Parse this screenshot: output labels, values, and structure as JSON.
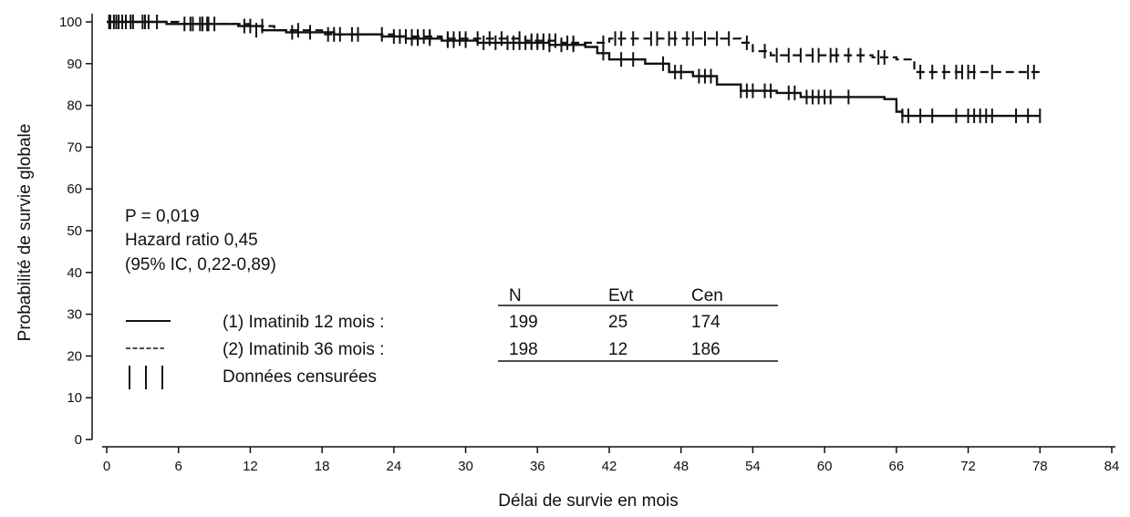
{
  "chart_data": {
    "type": "line",
    "subtype": "kaplan-meier",
    "xlabel": "Délai de survie en mois",
    "ylabel": "Probabilité de survie globale",
    "xlim": [
      0,
      84
    ],
    "ylim": [
      0,
      100
    ],
    "xticks": [
      "0",
      "6",
      "12",
      "18",
      "24",
      "30",
      "36",
      "42",
      "48",
      "54",
      "60",
      "66",
      "72",
      "78",
      "84"
    ],
    "yticks": [
      "0",
      "10",
      "20",
      "30",
      "40",
      "50",
      "60",
      "70",
      "80",
      "90",
      "100"
    ],
    "grid": false,
    "annotations": [
      "P = 0,019",
      "Hazard ratio 0,45",
      "(95% IC, 0,22-0,89)"
    ],
    "legend": {
      "position": "bottom-left",
      "entries": [
        {
          "symbol": "solid",
          "label": "(1) Imatinib 12 mois :"
        },
        {
          "symbol": "dashed",
          "label": "(2) Imatinib 36 mois :"
        },
        {
          "symbol": "ticks",
          "label": "Données censurées"
        }
      ]
    },
    "table": {
      "headers": [
        "N",
        "Evt",
        "Cen"
      ],
      "rows": [
        [
          "199",
          "25",
          "174"
        ],
        [
          "198",
          "12",
          "186"
        ]
      ]
    },
    "series": [
      {
        "style": "solid",
        "steps": [
          [
            0,
            100
          ],
          [
            5,
            99.5
          ],
          [
            11,
            99
          ],
          [
            13,
            98
          ],
          [
            15,
            97.5
          ],
          [
            19,
            97
          ],
          [
            23,
            96.5
          ],
          [
            25,
            96
          ],
          [
            28,
            95.5
          ],
          [
            31,
            95
          ],
          [
            37,
            94.5
          ],
          [
            40,
            94
          ],
          [
            41,
            92.5
          ],
          [
            42,
            91
          ],
          [
            45,
            90
          ],
          [
            47,
            88
          ],
          [
            49,
            87
          ],
          [
            51,
            85
          ],
          [
            53,
            83.5
          ],
          [
            56,
            83
          ],
          [
            58,
            82
          ],
          [
            65,
            81.5
          ],
          [
            66,
            78.5
          ],
          [
            66.5,
            77.5
          ],
          [
            78,
            77.5
          ]
        ],
        "censored": [
          [
            0.3,
            100
          ],
          [
            0.8,
            100
          ],
          [
            1.3,
            100
          ],
          [
            2,
            100
          ],
          [
            3,
            100
          ],
          [
            3.5,
            100
          ],
          [
            7,
            99.5
          ],
          [
            8,
            99.5
          ],
          [
            8.5,
            99.5
          ],
          [
            9,
            99.5
          ],
          [
            11.5,
            99
          ],
          [
            12,
            99
          ],
          [
            12.5,
            98
          ],
          [
            15.5,
            97.5
          ],
          [
            17,
            97.5
          ],
          [
            18.5,
            97
          ],
          [
            19.5,
            97
          ],
          [
            21,
            97
          ],
          [
            24,
            96.5
          ],
          [
            25.5,
            96
          ],
          [
            26,
            96
          ],
          [
            27,
            96
          ],
          [
            28.5,
            95.5
          ],
          [
            29,
            95.5
          ],
          [
            30,
            95.5
          ],
          [
            31.5,
            95
          ],
          [
            32.5,
            95
          ],
          [
            33.5,
            95
          ],
          [
            34,
            95
          ],
          [
            34.5,
            95
          ],
          [
            35,
            95
          ],
          [
            35.5,
            95
          ],
          [
            36,
            95
          ],
          [
            36.5,
            95
          ],
          [
            37,
            94.5
          ],
          [
            38,
            94.5
          ],
          [
            39,
            94.5
          ],
          [
            41.5,
            92.5
          ],
          [
            43,
            91
          ],
          [
            44,
            91
          ],
          [
            46.5,
            90
          ],
          [
            47.5,
            88
          ],
          [
            48,
            88
          ],
          [
            49.5,
            87
          ],
          [
            50,
            87
          ],
          [
            50.5,
            87
          ],
          [
            53,
            83.5
          ],
          [
            53.5,
            83.5
          ],
          [
            54,
            83.5
          ],
          [
            55,
            83.5
          ],
          [
            55.5,
            83.5
          ],
          [
            57,
            83
          ],
          [
            57.5,
            83
          ],
          [
            58.5,
            82
          ],
          [
            59,
            82
          ],
          [
            59.5,
            82
          ],
          [
            60,
            82
          ],
          [
            60.5,
            82
          ],
          [
            62,
            82
          ],
          [
            66.5,
            77.5
          ],
          [
            67,
            77.5
          ],
          [
            68,
            77.5
          ],
          [
            69,
            77.5
          ],
          [
            71,
            77.5
          ],
          [
            72,
            77.5
          ],
          [
            72.5,
            77.5
          ],
          [
            73,
            77.5
          ],
          [
            73.5,
            77.5
          ],
          [
            74,
            77.5
          ],
          [
            76,
            77.5
          ],
          [
            77,
            77.5
          ],
          [
            78,
            77.5
          ]
        ]
      },
      {
        "style": "dashed",
        "steps": [
          [
            0,
            100
          ],
          [
            6,
            99.5
          ],
          [
            12,
            99
          ],
          [
            14,
            98
          ],
          [
            18,
            97
          ],
          [
            24,
            96.5
          ],
          [
            28,
            96
          ],
          [
            35,
            95.5
          ],
          [
            38,
            95
          ],
          [
            42,
            96
          ],
          [
            53,
            95
          ],
          [
            54,
            93
          ],
          [
            55.5,
            92
          ],
          [
            64,
            91.5
          ],
          [
            66,
            91
          ],
          [
            67.5,
            88
          ],
          [
            78,
            88
          ]
        ],
        "censored": [
          [
            0.2,
            100
          ],
          [
            0.6,
            100
          ],
          [
            1,
            100
          ],
          [
            1.6,
            100
          ],
          [
            2.2,
            100
          ],
          [
            3.2,
            100
          ],
          [
            4.2,
            100
          ],
          [
            6.5,
            99.5
          ],
          [
            7.2,
            99.5
          ],
          [
            7.8,
            99.5
          ],
          [
            8.4,
            99.5
          ],
          [
            13,
            99
          ],
          [
            16,
            98
          ],
          [
            19,
            97
          ],
          [
            20.5,
            97
          ],
          [
            23,
            97
          ],
          [
            24.5,
            96.5
          ],
          [
            25,
            96.5
          ],
          [
            25.5,
            96.5
          ],
          [
            26,
            96.5
          ],
          [
            26.5,
            96.5
          ],
          [
            27,
            96.5
          ],
          [
            28.5,
            96
          ],
          [
            29,
            96
          ],
          [
            29.5,
            96
          ],
          [
            30,
            96
          ],
          [
            31,
            96
          ],
          [
            32,
            96
          ],
          [
            33,
            96
          ],
          [
            34.5,
            96
          ],
          [
            35.5,
            95.5
          ],
          [
            36,
            95.5
          ],
          [
            36.5,
            95.5
          ],
          [
            37,
            95.5
          ],
          [
            37.5,
            95.5
          ],
          [
            38.5,
            95
          ],
          [
            39,
            95
          ],
          [
            41.5,
            95
          ],
          [
            42.5,
            96
          ],
          [
            43,
            96
          ],
          [
            44,
            96
          ],
          [
            45.5,
            96
          ],
          [
            46,
            96
          ],
          [
            47,
            96
          ],
          [
            47.5,
            96
          ],
          [
            48.5,
            96
          ],
          [
            49,
            96
          ],
          [
            50,
            96
          ],
          [
            51,
            96
          ],
          [
            52,
            96
          ],
          [
            53.5,
            95
          ],
          [
            55,
            93
          ],
          [
            56,
            92
          ],
          [
            57,
            92
          ],
          [
            58,
            92
          ],
          [
            59,
            92
          ],
          [
            59.5,
            92
          ],
          [
            60.5,
            92
          ],
          [
            61,
            92
          ],
          [
            62,
            92
          ],
          [
            63,
            92
          ],
          [
            64.5,
            91.5
          ],
          [
            65,
            91.5
          ],
          [
            68,
            88
          ],
          [
            69,
            88
          ],
          [
            70,
            88
          ],
          [
            71,
            88
          ],
          [
            71.5,
            88
          ],
          [
            72,
            88
          ],
          [
            72.5,
            88
          ],
          [
            74,
            88
          ],
          [
            77,
            88
          ],
          [
            77.5,
            88
          ]
        ]
      }
    ]
  }
}
